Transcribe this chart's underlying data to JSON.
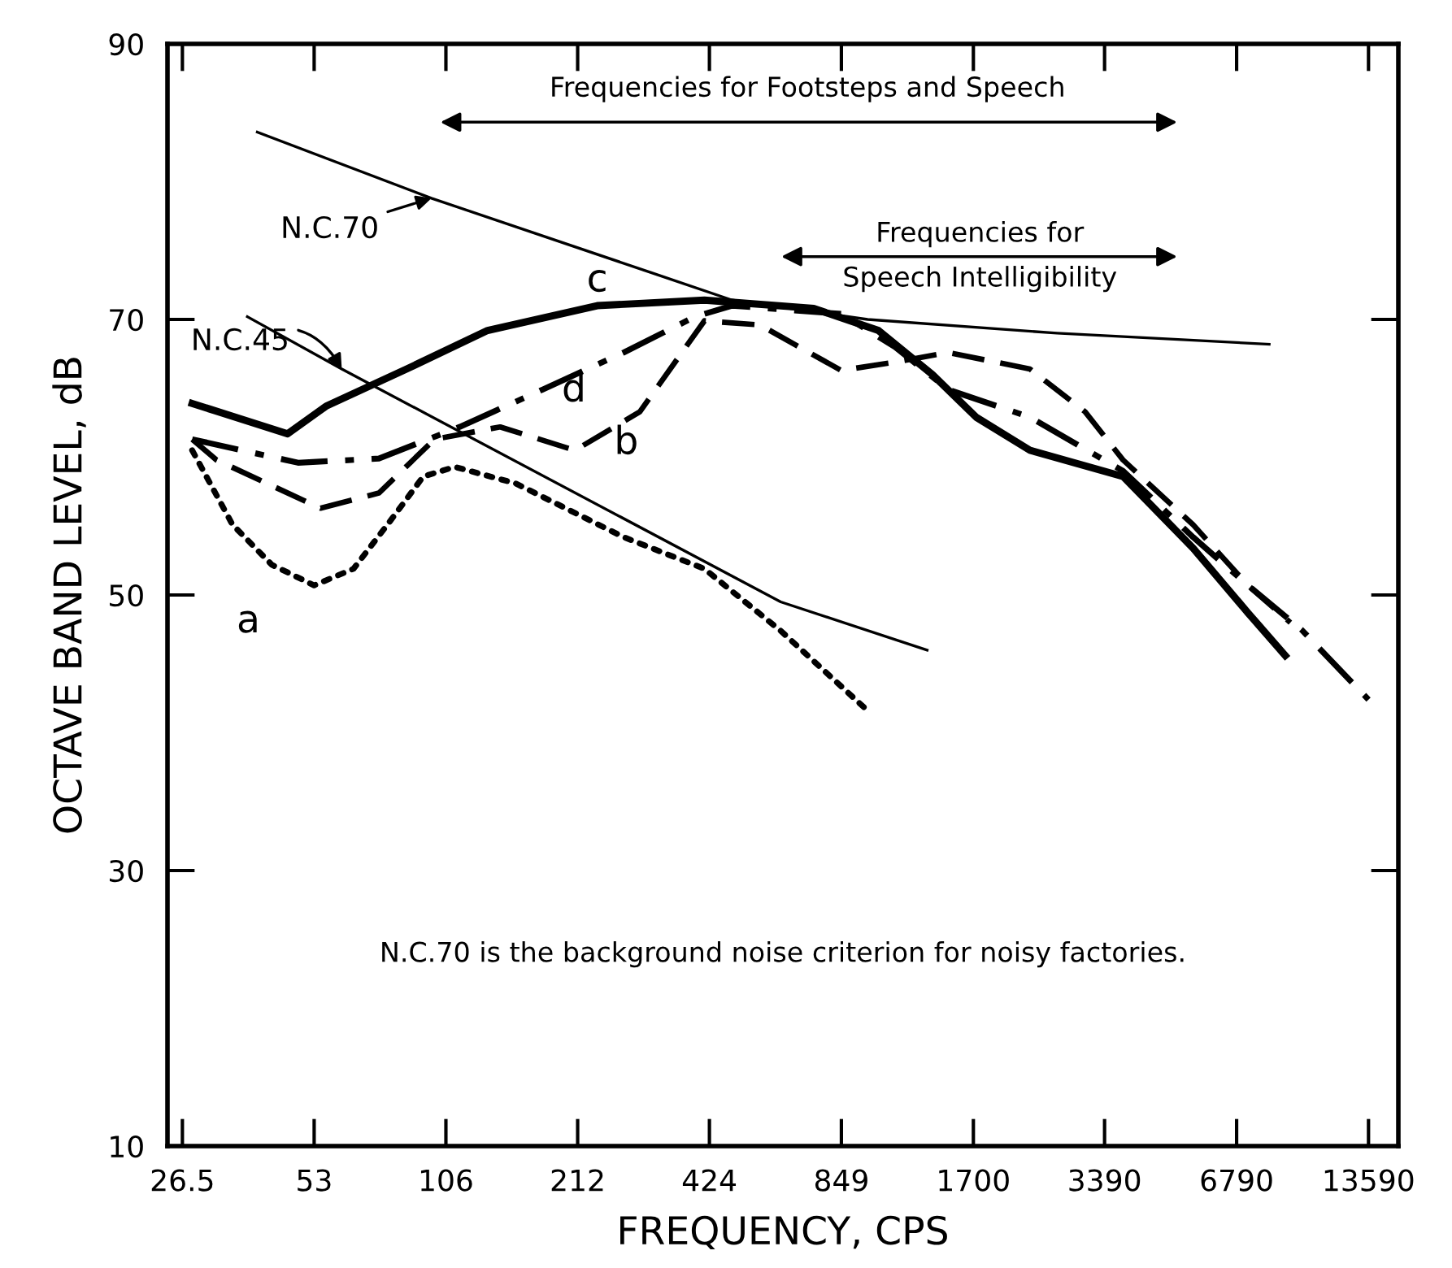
{
  "chart_data": {
    "type": "line",
    "xlabel": "FREQUENCY, CPS",
    "ylabel": "OCTAVE BAND LEVEL, dB",
    "log": "x",
    "grid": false,
    "xlim": [
      24.5,
      15900
    ],
    "ylim": [
      10,
      90
    ],
    "xticks": [
      {
        "value": 26.5,
        "label": "26.5"
      },
      53,
      106,
      212,
      424,
      849,
      1700,
      3390,
      6790,
      13590
    ],
    "yticks": [
      10,
      30,
      50,
      70,
      90
    ],
    "series": [
      {
        "name": "a",
        "color": "#000000",
        "line_style": "dotted",
        "x": [
          27.9,
          34.5,
          42.4,
          53,
          65.2,
          79.2,
          94.1,
          111,
          153,
          270,
          413,
          617,
          975
        ],
        "values": [
          60.5,
          55.1,
          52.2,
          50.7,
          51.9,
          55.4,
          58.6,
          59.3,
          58.1,
          54.2,
          51.9,
          47.4,
          41.6
        ]
      },
      {
        "name": "b",
        "color": "#000000",
        "line_style": "dashed",
        "x": [
          27.9,
          31.7,
          54.8,
          74.5,
          99.8,
          141,
          209,
          294,
          413,
          553,
          848,
          1126,
          1490,
          2290,
          3060,
          3736,
          5400,
          7210,
          9010
        ],
        "values": [
          61.3,
          59.8,
          56.3,
          57.4,
          61.3,
          62.2,
          60.5,
          63.3,
          69.9,
          69.6,
          66.3,
          66.9,
          67.6,
          66.4,
          63.3,
          59.8,
          55.1,
          50.7,
          48.0
        ]
      },
      {
        "name": "c",
        "color": "#000000",
        "line_style": "solid",
        "x": [
          27.9,
          46.1,
          56.4,
          86.2,
          132,
          235,
          413,
          734,
          1031,
          1370,
          1726,
          2290,
          3736,
          5400,
          7210,
          8770
        ],
        "values": [
          63.9,
          61.7,
          63.7,
          66.4,
          69.2,
          71.0,
          71.4,
          70.8,
          69.2,
          66.0,
          62.9,
          60.5,
          58.6,
          53.4,
          48.7,
          45.6
        ]
      },
      {
        "name": "d",
        "color": "#000000",
        "line_style": "dashdot",
        "x": [
          27.9,
          48.7,
          74.5,
          114,
          176,
          270,
          393,
          478,
          848,
          1126,
          1490,
          2290,
          3736,
          5400,
          7210,
          9540,
          13590
        ],
        "values": [
          61.3,
          59.6,
          59.9,
          62.2,
          64.9,
          67.6,
          70.2,
          71.0,
          70.4,
          68.0,
          64.9,
          62.9,
          59.0,
          54.2,
          50.7,
          47.5,
          42.4
        ]
      },
      {
        "name": "N.C.70",
        "color": "#000000",
        "line_style": "solid",
        "x": [
          39.3,
          98.2,
          312,
          478,
          975,
          2640,
          8060
        ],
        "values": [
          83.6,
          78.8,
          73.4,
          71.4,
          70.0,
          69.0,
          68.2
        ]
      },
      {
        "name": "N.C.45",
        "color": "#000000",
        "line_style": "solid",
        "x": [
          37.3,
          61.3,
          617,
          1333
        ],
        "values": [
          70.2,
          66.4,
          49.5,
          46.0
        ]
      }
    ],
    "annotations": [
      "Frequencies for Footsteps and Speech",
      "Frequencies for\nSpeech Intelligibility",
      "N.C.70 is the background noise criterion for noisy factories."
    ]
  }
}
